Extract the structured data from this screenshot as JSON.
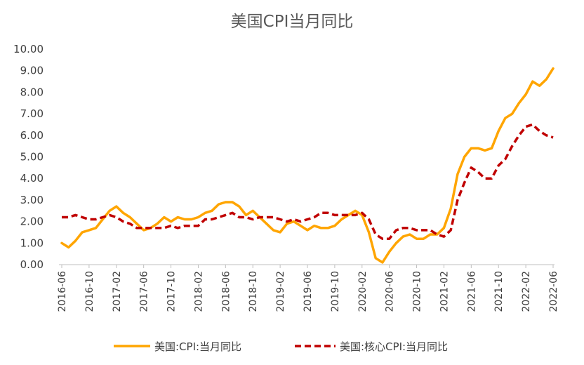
{
  "chart_data": {
    "type": "line",
    "title": "美国CPI当月同比",
    "xlabel": "",
    "ylabel": "",
    "ylim": [
      0,
      10
    ],
    "yticks": [
      "0.00",
      "1.00",
      "2.00",
      "3.00",
      "4.00",
      "5.00",
      "6.00",
      "7.00",
      "8.00",
      "9.00",
      "10.00"
    ],
    "x_tick_labels": [
      "2016-06",
      "2016-10",
      "2017-02",
      "2017-06",
      "2017-10",
      "2018-02",
      "2018-06",
      "2018-10",
      "2019-02",
      "2019-06",
      "2019-10",
      "2020-02",
      "2020-06",
      "2020-10",
      "2021-02",
      "2021-06",
      "2021-10",
      "2022-02",
      "2022-06"
    ],
    "x": [
      "2016-06",
      "2016-07",
      "2016-08",
      "2016-09",
      "2016-10",
      "2016-11",
      "2016-12",
      "2017-01",
      "2017-02",
      "2017-03",
      "2017-04",
      "2017-05",
      "2017-06",
      "2017-07",
      "2017-08",
      "2017-09",
      "2017-10",
      "2017-11",
      "2017-12",
      "2018-01",
      "2018-02",
      "2018-03",
      "2018-04",
      "2018-05",
      "2018-06",
      "2018-07",
      "2018-08",
      "2018-09",
      "2018-10",
      "2018-11",
      "2018-12",
      "2019-01",
      "2019-02",
      "2019-03",
      "2019-04",
      "2019-05",
      "2019-06",
      "2019-07",
      "2019-08",
      "2019-09",
      "2019-10",
      "2019-11",
      "2019-12",
      "2020-01",
      "2020-02",
      "2020-03",
      "2020-04",
      "2020-05",
      "2020-06",
      "2020-07",
      "2020-08",
      "2020-09",
      "2020-10",
      "2020-11",
      "2020-12",
      "2021-01",
      "2021-02",
      "2021-03",
      "2021-04",
      "2021-05",
      "2021-06",
      "2021-07",
      "2021-08",
      "2021-09",
      "2021-10",
      "2021-11",
      "2021-12",
      "2022-01",
      "2022-02",
      "2022-03",
      "2022-04",
      "2022-05",
      "2022-06"
    ],
    "series": [
      {
        "name": "美国:CPI:当月同比",
        "color": "#FFA500",
        "style": "solid",
        "values": [
          1.0,
          0.8,
          1.1,
          1.5,
          1.6,
          1.7,
          2.1,
          2.5,
          2.7,
          2.4,
          2.2,
          1.9,
          1.6,
          1.7,
          1.9,
          2.2,
          2.0,
          2.2,
          2.1,
          2.1,
          2.2,
          2.4,
          2.5,
          2.8,
          2.9,
          2.9,
          2.7,
          2.3,
          2.5,
          2.2,
          1.9,
          1.6,
          1.5,
          1.9,
          2.0,
          1.8,
          1.6,
          1.8,
          1.7,
          1.7,
          1.8,
          2.1,
          2.3,
          2.5,
          2.3,
          1.5,
          0.3,
          0.1,
          0.6,
          1.0,
          1.3,
          1.4,
          1.2,
          1.2,
          1.4,
          1.4,
          1.7,
          2.6,
          4.2,
          5.0,
          5.4,
          5.4,
          5.3,
          5.4,
          6.2,
          6.8,
          7.0,
          7.5,
          7.9,
          8.5,
          8.3,
          8.6,
          9.1
        ]
      },
      {
        "name": "美国:核心CPI:当月同比",
        "color": "#C00000",
        "style": "dashed",
        "values": [
          2.2,
          2.2,
          2.3,
          2.2,
          2.1,
          2.1,
          2.2,
          2.3,
          2.2,
          2.0,
          1.9,
          1.7,
          1.7,
          1.7,
          1.7,
          1.7,
          1.8,
          1.7,
          1.8,
          1.8,
          1.8,
          2.1,
          2.1,
          2.2,
          2.3,
          2.4,
          2.2,
          2.2,
          2.1,
          2.2,
          2.2,
          2.2,
          2.1,
          2.0,
          2.1,
          2.0,
          2.1,
          2.2,
          2.4,
          2.4,
          2.3,
          2.3,
          2.3,
          2.3,
          2.4,
          2.1,
          1.4,
          1.2,
          1.2,
          1.6,
          1.7,
          1.7,
          1.6,
          1.6,
          1.6,
          1.4,
          1.3,
          1.6,
          3.0,
          3.8,
          4.5,
          4.3,
          4.0,
          4.0,
          4.6,
          4.9,
          5.5,
          6.0,
          6.4,
          6.5,
          6.2,
          6.0,
          5.9
        ]
      }
    ],
    "grid": false,
    "legend_position": "bottom"
  }
}
